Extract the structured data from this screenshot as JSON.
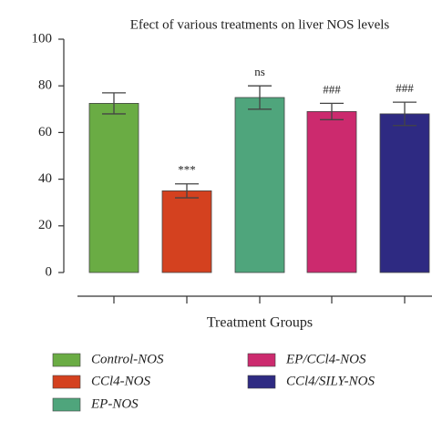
{
  "chart_data": {
    "type": "bar",
    "title": "Efect of various treatments on liver NOS levels",
    "x_label": "Treatment Groups",
    "categories": [
      "Control-NOS",
      "CCl4-NOS",
      "EP-NOS",
      "EP/CCl4-NOS",
      "CCl4/SILY-NOS"
    ],
    "values": [
      72.5,
      35,
      75,
      69,
      68
    ],
    "errors": [
      4.5,
      3,
      5,
      3.5,
      5
    ],
    "annotations": [
      null,
      "***",
      "ns",
      "###",
      "###"
    ],
    "colors": [
      "#6aac44",
      "#d4411f",
      "#4fa57c",
      "#cc2a6e",
      "#2e2a82"
    ],
    "ylim": [
      0,
      100
    ],
    "yticks": [
      0,
      20,
      40,
      60,
      80,
      100
    ]
  }
}
